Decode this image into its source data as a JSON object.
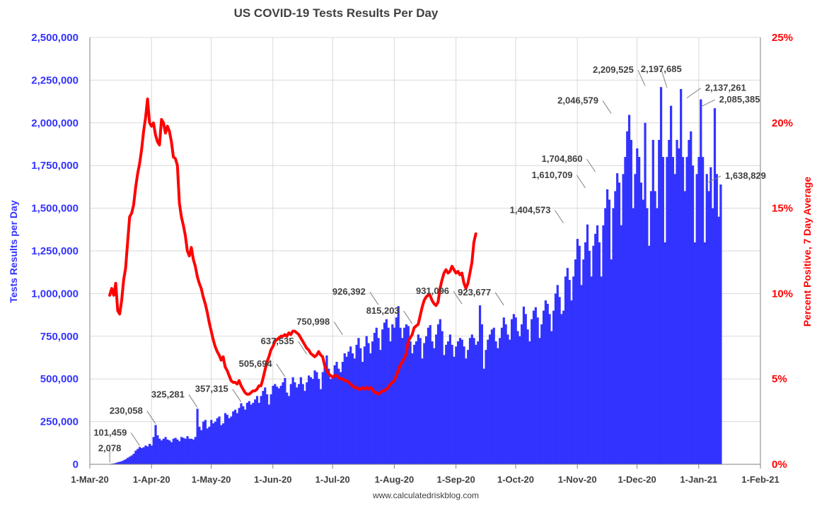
{
  "chart_data": {
    "type": "bar",
    "title": "US COVID-19 Tests Results Per Day",
    "ylabel": "Tests Results per Day",
    "y2label": "Percent Positive, 7 Day Average",
    "source": "www.calculatedriskblog.com",
    "ylim": [
      0,
      2500000
    ],
    "y2lim": [
      0,
      25
    ],
    "xlim_days": [
      0,
      337
    ],
    "yticks": [
      "0",
      "250,000",
      "500,000",
      "750,000",
      "1,000,000",
      "1,250,000",
      "1,500,000",
      "1,750,000",
      "2,000,000",
      "2,250,000",
      "2,500,000"
    ],
    "y2ticks": [
      "0%",
      "5%",
      "10%",
      "15%",
      "20%",
      "25%"
    ],
    "xticks": [
      {
        "label": "1-Mar-20",
        "day": 0
      },
      {
        "label": "1-Apr-20",
        "day": 31
      },
      {
        "label": "1-May-20",
        "day": 61
      },
      {
        "label": "1-Jun-20",
        "day": 92
      },
      {
        "label": "1-Jul-20",
        "day": 122
      },
      {
        "label": "1-Aug-20",
        "day": 153
      },
      {
        "label": "1-Sep-20",
        "day": 184
      },
      {
        "label": "1-Oct-20",
        "day": 214
      },
      {
        "label": "1-Nov-20",
        "day": 245
      },
      {
        "label": "1-Dec-20",
        "day": 275
      },
      {
        "label": "1-Jan-21",
        "day": 306
      },
      {
        "label": "1-Feb-21",
        "day": 337
      }
    ],
    "tests_series": {
      "name": "Tests Results per Day",
      "color": "#3333ff",
      "start_day": 10,
      "values": [
        2078,
        3500,
        5000,
        8000,
        12000,
        15000,
        18000,
        24000,
        30000,
        38000,
        45000,
        52000,
        62000,
        80000,
        90000,
        101459,
        95000,
        100000,
        110000,
        105000,
        120000,
        110000,
        160000,
        230058,
        170000,
        150000,
        140000,
        150000,
        160000,
        145000,
        140000,
        130000,
        150000,
        155000,
        145000,
        135000,
        160000,
        155000,
        150000,
        165000,
        150000,
        150000,
        145000,
        160000,
        325281,
        220000,
        200000,
        250000,
        260000,
        210000,
        220000,
        260000,
        240000,
        250000,
        270000,
        280000,
        230000,
        240000,
        300000,
        290000,
        270000,
        280000,
        310000,
        320000,
        300000,
        330000,
        357315,
        340000,
        320000,
        360000,
        370000,
        350000,
        360000,
        380000,
        400000,
        360000,
        400000,
        430000,
        450000,
        410000,
        350000,
        410000,
        460000,
        470000,
        455000,
        445000,
        460000,
        480000,
        505694,
        420000,
        400000,
        470000,
        510000,
        480000,
        450000,
        470000,
        510000,
        470000,
        430000,
        480000,
        520000,
        510000,
        500000,
        550000,
        540000,
        500000,
        440000,
        540000,
        590000,
        637535,
        560000,
        500000,
        520000,
        580000,
        600000,
        560000,
        540000,
        600000,
        650000,
        630000,
        660000,
        690000,
        650000,
        620000,
        700000,
        740000,
        680000,
        600000,
        690000,
        750998,
        710000,
        650000,
        720000,
        770000,
        800000,
        740000,
        670000,
        790000,
        830000,
        850000,
        800000,
        720000,
        820000,
        800000,
        860000,
        926392,
        800000,
        740000,
        800000,
        820000,
        810000,
        720000,
        650000,
        700000,
        720000,
        760000,
        740000,
        620000,
        710000,
        750000,
        800000,
        815203,
        720000,
        680000,
        760000,
        820000,
        850000,
        780000,
        640000,
        700000,
        720000,
        760000,
        700000,
        630000,
        690000,
        720000,
        740000,
        730000,
        690000,
        620000,
        670000,
        740000,
        760000,
        740000,
        700000,
        720000,
        931096,
        820000,
        560000,
        670000,
        730000,
        760000,
        790000,
        800000,
        720000,
        680000,
        740000,
        800000,
        860000,
        820000,
        760000,
        730000,
        850000,
        880000,
        860000,
        780000,
        750000,
        820000,
        923677,
        880000,
        790000,
        720000,
        850000,
        900000,
        920000,
        860000,
        740000,
        820000,
        900000,
        960000,
        940000,
        880000,
        780000,
        900000,
        1000000,
        1050000,
        980000,
        880000,
        900000,
        1100000,
        1150000,
        1080000,
        960000,
        1100000,
        1200000,
        1320000,
        1280000,
        1050000,
        1200000,
        1300000,
        1404573,
        1250000,
        1100000,
        1280000,
        1350000,
        1400000,
        1300000,
        1100000,
        1400000,
        1500000,
        1610709,
        1550000,
        1200000,
        1500000,
        1600000,
        1704860,
        1650000,
        1400000,
        1700000,
        1800000,
        1950000,
        2046579,
        1900000,
        1500000,
        1700000,
        1850000,
        1800000,
        1650000,
        1550000,
        2000000,
        1500000,
        1280000,
        1600000,
        1900000,
        1600000,
        1500000,
        1900000,
        2209525,
        1800000,
        1300000,
        1800000,
        1900000,
        2100000,
        1800000,
        1700000,
        1900000,
        1850000,
        2197685,
        1800000,
        1600000,
        1800000,
        1900000,
        1950000,
        1750000,
        1300000,
        1700000,
        1800000,
        2137261,
        1800000,
        1300000,
        1700000,
        1600000,
        1740000,
        1500000,
        2085385,
        1700000,
        1450000,
        1638829
      ]
    },
    "positivity_series": {
      "name": "Percent Positive, 7 Day Average",
      "color": "#ff0000",
      "unit": "%",
      "points": [
        [
          10,
          9.9
        ],
        [
          11,
          10.3
        ],
        [
          12,
          9.9
        ],
        [
          13,
          10.6
        ],
        [
          14,
          9.0
        ],
        [
          15,
          8.8
        ],
        [
          16,
          9.6
        ],
        [
          17,
          10.8
        ],
        [
          18,
          11.5
        ],
        [
          19,
          13.0
        ],
        [
          20,
          14.5
        ],
        [
          21,
          14.7
        ],
        [
          22,
          15.2
        ],
        [
          23,
          16.2
        ],
        [
          24,
          17.0
        ],
        [
          25,
          17.6
        ],
        [
          26,
          18.4
        ],
        [
          27,
          19.5
        ],
        [
          28,
          20.3
        ],
        [
          29,
          21.4
        ],
        [
          30,
          20.0
        ],
        [
          31,
          19.8
        ],
        [
          32,
          20.0
        ],
        [
          33,
          19.3
        ],
        [
          34,
          18.9
        ],
        [
          35,
          18.7
        ],
        [
          36,
          20.2
        ],
        [
          37,
          20.0
        ],
        [
          38,
          19.4
        ],
        [
          39,
          19.8
        ],
        [
          40,
          19.5
        ],
        [
          41,
          18.9
        ],
        [
          42,
          18.0
        ],
        [
          43,
          17.9
        ],
        [
          44,
          17.5
        ],
        [
          45,
          15.3
        ],
        [
          46,
          14.5
        ],
        [
          47,
          14.0
        ],
        [
          48,
          13.4
        ],
        [
          49,
          12.5
        ],
        [
          50,
          12.2
        ],
        [
          51,
          12.7
        ],
        [
          52,
          12.0
        ],
        [
          53,
          11.6
        ],
        [
          54,
          11.0
        ],
        [
          55,
          10.6
        ],
        [
          56,
          10.3
        ],
        [
          57,
          9.8
        ],
        [
          58,
          9.4
        ],
        [
          59,
          8.9
        ],
        [
          60,
          8.3
        ],
        [
          61,
          7.8
        ],
        [
          62,
          7.3
        ],
        [
          63,
          6.9
        ],
        [
          64,
          6.6
        ],
        [
          65,
          6.4
        ],
        [
          66,
          6.1
        ],
        [
          67,
          6.3
        ],
        [
          68,
          5.7
        ],
        [
          69,
          5.5
        ],
        [
          70,
          5.2
        ],
        [
          71,
          4.9
        ],
        [
          72,
          4.8
        ],
        [
          73,
          4.8
        ],
        [
          74,
          4.7
        ],
        [
          75,
          4.9
        ],
        [
          76,
          4.6
        ],
        [
          77,
          4.4
        ],
        [
          78,
          4.2
        ],
        [
          79,
          4.1
        ],
        [
          80,
          4.1
        ],
        [
          81,
          4.2
        ],
        [
          82,
          4.3
        ],
        [
          83,
          4.3
        ],
        [
          84,
          4.4
        ],
        [
          85,
          4.6
        ],
        [
          86,
          4.6
        ],
        [
          87,
          5.0
        ],
        [
          88,
          5.5
        ],
        [
          89,
          6.0
        ],
        [
          90,
          6.3
        ],
        [
          91,
          6.7
        ],
        [
          92,
          6.9
        ],
        [
          93,
          7.2
        ],
        [
          94,
          7.3
        ],
        [
          95,
          7.4
        ],
        [
          96,
          7.5
        ],
        [
          97,
          7.5
        ],
        [
          98,
          7.6
        ],
        [
          99,
          7.5
        ],
        [
          100,
          7.7
        ],
        [
          101,
          7.6
        ],
        [
          102,
          7.8
        ],
        [
          103,
          7.8
        ],
        [
          104,
          7.7
        ],
        [
          105,
          7.6
        ],
        [
          106,
          7.4
        ],
        [
          107,
          7.2
        ],
        [
          108,
          7.0
        ],
        [
          109,
          6.8
        ],
        [
          110,
          6.7
        ],
        [
          111,
          6.5
        ],
        [
          112,
          6.4
        ],
        [
          113,
          6.3
        ],
        [
          114,
          6.4
        ],
        [
          115,
          6.6
        ],
        [
          116,
          6.4
        ],
        [
          117,
          6.3
        ],
        [
          118,
          5.8
        ],
        [
          119,
          5.5
        ],
        [
          120,
          5.3
        ],
        [
          121,
          5.2
        ],
        [
          122,
          5.1
        ],
        [
          123,
          5.2
        ],
        [
          124,
          5.2
        ],
        [
          125,
          5.1
        ],
        [
          126,
          5.0
        ],
        [
          127,
          5.0
        ],
        [
          128,
          4.9
        ],
        [
          129,
          4.9
        ],
        [
          130,
          4.8
        ],
        [
          131,
          4.7
        ],
        [
          132,
          4.6
        ],
        [
          133,
          4.5
        ],
        [
          134,
          4.5
        ],
        [
          135,
          4.4
        ],
        [
          136,
          4.4
        ],
        [
          137,
          4.5
        ],
        [
          138,
          4.4
        ],
        [
          139,
          4.5
        ],
        [
          140,
          4.4
        ],
        [
          141,
          4.5
        ],
        [
          142,
          4.4
        ],
        [
          143,
          4.2
        ],
        [
          144,
          4.2
        ],
        [
          145,
          4.1
        ],
        [
          146,
          4.2
        ],
        [
          147,
          4.3
        ],
        [
          148,
          4.3
        ],
        [
          149,
          4.4
        ],
        [
          150,
          4.5
        ],
        [
          151,
          4.7
        ],
        [
          152,
          4.8
        ],
        [
          153,
          4.9
        ],
        [
          154,
          5.2
        ],
        [
          155,
          5.5
        ],
        [
          156,
          5.8
        ],
        [
          157,
          6.0
        ],
        [
          158,
          6.2
        ],
        [
          159,
          6.5
        ],
        [
          160,
          7.2
        ],
        [
          161,
          7.4
        ],
        [
          162,
          7.6
        ],
        [
          163,
          8.0
        ],
        [
          164,
          8.1
        ],
        [
          165,
          8.2
        ],
        [
          166,
          8.7
        ],
        [
          167,
          9.2
        ],
        [
          168,
          9.6
        ],
        [
          169,
          9.8
        ],
        [
          170,
          9.9
        ],
        [
          171,
          9.9
        ],
        [
          172,
          9.6
        ],
        [
          173,
          9.4
        ],
        [
          174,
          9.3
        ],
        [
          175,
          9.5
        ],
        [
          176,
          10.3
        ],
        [
          177,
          10.8
        ],
        [
          178,
          11.2
        ],
        [
          179,
          11.4
        ],
        [
          180,
          11.2
        ],
        [
          181,
          11.3
        ],
        [
          182,
          11.6
        ],
        [
          183,
          11.4
        ],
        [
          184,
          11.2
        ],
        [
          185,
          11.3
        ],
        [
          186,
          11.1
        ],
        [
          187,
          11.2
        ],
        [
          188,
          10.6
        ],
        [
          189,
          10.3
        ],
        [
          190,
          10.6
        ],
        [
          191,
          11.2
        ],
        [
          192,
          11.8
        ],
        [
          193,
          13.0
        ],
        [
          194,
          13.5
        ]
      ]
    },
    "annotations": [
      {
        "label": "2,078",
        "day": 10,
        "value": 2078
      },
      {
        "label": "101,459",
        "day": 25,
        "value": 101459
      },
      {
        "label": "230,058",
        "day": 33,
        "value": 230058
      },
      {
        "label": "325,281",
        "day": 54,
        "value": 325281
      },
      {
        "label": "357,315",
        "day": 76,
        "value": 357315
      },
      {
        "label": "505,694",
        "day": 98,
        "value": 505694
      },
      {
        "label": "637,535",
        "day": 109,
        "value": 637535
      },
      {
        "label": "750,998",
        "day": 127,
        "value": 750998
      },
      {
        "label": "926,392",
        "day": 145,
        "value": 926392
      },
      {
        "label": "815,203",
        "day": 162,
        "value": 815203
      },
      {
        "label": "931,096",
        "day": 187,
        "value": 931096
      },
      {
        "label": "923,677",
        "day": 208,
        "value": 923677
      },
      {
        "label": "1,404,573",
        "day": 238,
        "value": 1404573
      },
      {
        "label": "1,610,709",
        "day": 249,
        "value": 1610709
      },
      {
        "label": "1,704,860",
        "day": 254,
        "value": 1704860
      },
      {
        "label": "2,046,579",
        "day": 262,
        "value": 2046579
      },
      {
        "label": "2,209,525",
        "day": 279,
        "value": 2209525
      },
      {
        "label": "2,197,685",
        "day": 290,
        "value": 2197685
      },
      {
        "label": "2,137,261",
        "day": 300,
        "value": 2137261
      },
      {
        "label": "2,085,385",
        "day": 307,
        "value": 2085385
      },
      {
        "label": "1,638,829",
        "day": 310,
        "value": 1638829
      }
    ]
  }
}
